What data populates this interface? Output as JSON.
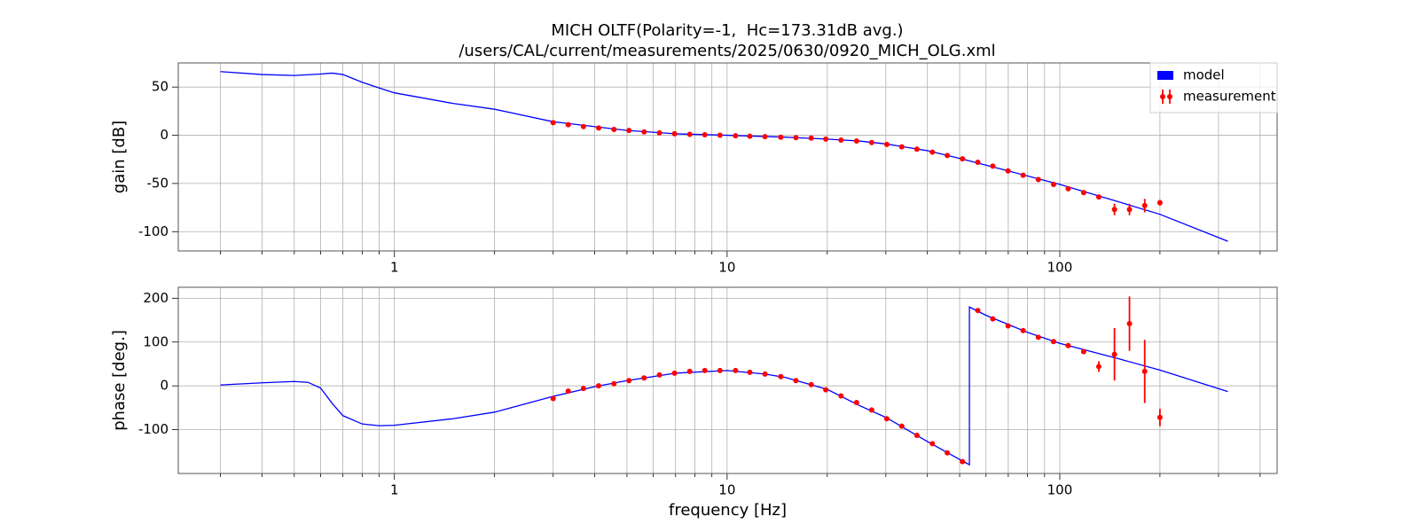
{
  "chart_data": [
    {
      "type": "line",
      "title": "MICH OLTF(Polarity=-1,  Hc=173.31dB avg.)",
      "subtitle": "/users/CAL/current/measurements/2025/0630/0920_MICH_OLG.xml",
      "ylabel": "gain [dB]",
      "x_scale": "log",
      "xlim": [
        0.224,
        450
      ],
      "xticks": [
        1,
        10,
        100
      ],
      "x_minor_ticks": [
        0.3,
        0.4,
        0.5,
        0.6,
        0.7,
        0.8,
        0.9,
        2,
        3,
        4,
        5,
        6,
        7,
        8,
        9,
        20,
        30,
        40,
        50,
        60,
        70,
        80,
        90,
        200,
        300,
        400
      ],
      "ylim": [
        -120,
        75
      ],
      "yticks": [
        -100,
        -50,
        0,
        50
      ],
      "grid": true,
      "legend": "upper right",
      "series": [
        {
          "name": "model",
          "color": "#0000ff",
          "x": [
            0.3,
            0.4,
            0.5,
            0.6,
            0.65,
            0.7,
            0.8,
            0.9,
            1,
            1.5,
            2,
            3,
            5,
            7,
            10,
            15,
            20,
            25,
            30,
            40,
            50,
            70,
            100,
            150,
            200,
            320
          ],
          "values": [
            66,
            63,
            62,
            63.5,
            64.5,
            63,
            55,
            49,
            44,
            33,
            27,
            14,
            5,
            1.5,
            0,
            -2,
            -4,
            -6,
            -9,
            -16,
            -24,
            -37,
            -51,
            -69,
            -82,
            -110
          ]
        },
        {
          "name": "measurement",
          "color": "#ff0000",
          "type": "errorbar",
          "x": [
            3.0,
            3.33,
            3.7,
            4.11,
            4.57,
            5.07,
            5.63,
            6.26,
            6.95,
            7.72,
            8.57,
            9.52,
            10.6,
            11.7,
            13.0,
            14.5,
            16.1,
            17.9,
            19.8,
            22.0,
            24.5,
            27.2,
            30.2,
            33.5,
            37.2,
            41.4,
            45.9,
            51.0,
            56.7,
            62.9,
            69.9,
            77.6,
            86.2,
            95.8,
            106,
            118,
            131,
            146,
            162,
            180,
            200
          ],
          "values": [
            13,
            11,
            9,
            7.5,
            6,
            5,
            3.5,
            2.5,
            1.5,
            1,
            0.5,
            0,
            -0.5,
            -1,
            -1.5,
            -2,
            -2.5,
            -3,
            -4,
            -5,
            -6,
            -7.5,
            -9.5,
            -12,
            -14.5,
            -17.5,
            -21,
            -24.5,
            -28,
            -32,
            -37,
            -41.5,
            -46,
            -51,
            -55.5,
            -59.5,
            -64,
            -77,
            -77,
            -73,
            -70
          ],
          "errors": [
            1,
            1,
            1,
            1,
            1,
            1,
            1,
            1,
            1,
            1,
            1,
            1,
            1,
            1,
            1,
            1,
            1,
            1,
            1,
            1,
            1,
            1,
            1,
            1,
            1,
            1,
            1,
            1,
            1,
            1,
            1,
            1,
            1,
            1,
            1,
            1,
            1.5,
            6,
            6,
            7,
            3
          ]
        }
      ]
    },
    {
      "type": "line",
      "ylabel": "phase [deg.]",
      "xlabel": "frequency [Hz]",
      "x_scale": "log",
      "xlim": [
        0.224,
        450
      ],
      "xticks": [
        1,
        10,
        100
      ],
      "x_minor_ticks": [
        0.3,
        0.4,
        0.5,
        0.6,
        0.7,
        0.8,
        0.9,
        2,
        3,
        4,
        5,
        6,
        7,
        8,
        9,
        20,
        30,
        40,
        50,
        60,
        70,
        80,
        90,
        200,
        300,
        400
      ],
      "ylim": [
        -200,
        225
      ],
      "yticks": [
        -100,
        0,
        100,
        200
      ],
      "grid": true,
      "series": [
        {
          "color": "#0000ff",
          "x": [
            0.3,
            0.4,
            0.5,
            0.55,
            0.6,
            0.65,
            0.7,
            0.8,
            0.9,
            1,
            1.5,
            2,
            3,
            4,
            5,
            7,
            10,
            13,
            15,
            20,
            25,
            30,
            40,
            50,
            53.5,
            53.5,
            60,
            80,
            100,
            150,
            200,
            320
          ],
          "values": [
            2,
            7,
            10,
            8,
            -5,
            -40,
            -68,
            -87,
            -91,
            -90,
            -75,
            -60,
            -24,
            -2,
            12,
            29,
            35,
            27,
            19,
            -8,
            -45,
            -72,
            -127,
            -168,
            -180,
            180,
            161,
            122,
            97,
            62,
            36,
            -13
          ]
        },
        {
          "color": "#ff0000",
          "type": "errorbar",
          "x": [
            3.0,
            3.33,
            3.7,
            4.11,
            4.57,
            5.07,
            5.63,
            6.26,
            6.95,
            7.72,
            8.57,
            9.52,
            10.6,
            11.7,
            13.0,
            14.5,
            16.1,
            17.9,
            19.8,
            22.0,
            24.5,
            27.2,
            30.2,
            33.5,
            37.2,
            41.4,
            45.9,
            51.0,
            56.7,
            62.9,
            69.9,
            77.6,
            86.2,
            95.8,
            106,
            118,
            131,
            146,
            162,
            180,
            200
          ],
          "values": [
            -29,
            -12,
            -6,
            0,
            5,
            12,
            18,
            25,
            29,
            33,
            35,
            35,
            35,
            31,
            27,
            21,
            12,
            3,
            -9,
            -23,
            -38,
            -55,
            -75,
            -92,
            -113,
            -132,
            -153,
            -173,
            172,
            153,
            137,
            126,
            111,
            101,
            92,
            78,
            44,
            72,
            142,
            33,
            -72
          ],
          "errors": [
            2,
            2,
            2,
            2,
            2,
            2,
            2,
            2,
            2,
            2,
            2,
            2,
            2,
            2,
            2,
            2,
            2,
            2,
            2,
            2,
            2,
            2,
            2,
            2,
            2,
            2,
            2,
            2,
            2,
            2,
            2,
            2,
            2,
            2,
            2,
            2,
            12,
            60,
            62,
            72,
            20
          ]
        }
      ]
    }
  ]
}
